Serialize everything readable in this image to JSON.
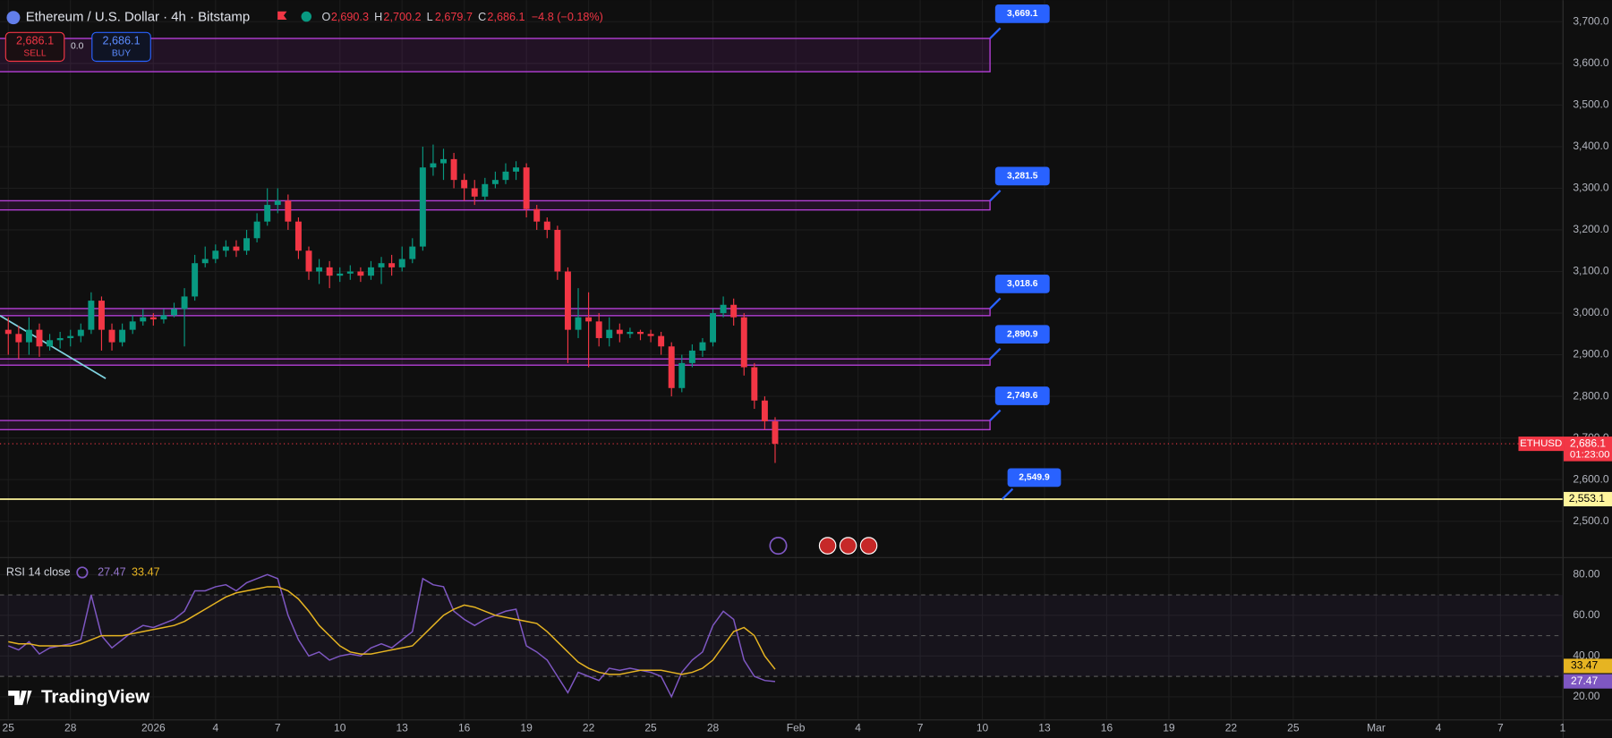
{
  "header": {
    "symbol_title": "Ethereum / U.S. Dollar · 4h · Bitstamp",
    "open_label": "O",
    "open": "2,690.3",
    "high_label": "H",
    "high": "2,700.2",
    "low_label": "L",
    "low": "2,679.7",
    "close_label": "C",
    "close": "2,686.1",
    "change": "−4.8 (−0.18%)",
    "sell_price": "2,686.1",
    "sell_label": "SELL",
    "spread": "0.0",
    "buy_price": "2,686.1",
    "buy_label": "BUY"
  },
  "branding": "TradingView",
  "chart_data": [
    {
      "type": "candlestick",
      "up_color": "#089981",
      "down_color": "#f23645",
      "grid": true,
      "x": [
        0,
        0.5,
        1,
        1.5,
        2,
        2.5,
        3,
        3.5,
        4,
        4.5,
        5,
        5.5,
        6,
        6.5,
        7,
        7.5,
        8,
        8.5,
        9,
        9.5,
        10,
        10.5,
        11,
        11.5,
        12,
        12.5,
        13,
        13.5,
        14,
        14.5,
        15,
        15.5,
        16,
        16.5,
        17,
        17.5,
        18,
        18.5,
        19,
        19.5,
        20,
        20.5,
        21,
        21.5,
        22,
        22.5,
        23,
        23.5,
        24,
        24.5,
        25,
        25.5,
        26,
        26.5,
        27,
        27.5,
        28,
        28.5,
        29,
        29.5,
        30,
        30.5,
        31,
        31.5,
        32,
        32.5,
        33,
        33.5,
        34,
        34.5,
        35,
        35.5,
        36,
        36.5,
        37
      ],
      "open": [
        2960,
        2950,
        2930,
        2960,
        2920,
        2935,
        2940,
        2945,
        2960,
        3030,
        2960,
        2930,
        2960,
        2980,
        2990,
        2985,
        2995,
        3010,
        3040,
        3120,
        3130,
        3150,
        3160,
        3150,
        3180,
        3220,
        3260,
        3270,
        3220,
        3150,
        3100,
        3110,
        3090,
        3095,
        3100,
        3090,
        3110,
        3120,
        3110,
        3130,
        3160,
        3350,
        3360,
        3370,
        3320,
        3300,
        3280,
        3310,
        3320,
        3340,
        3350,
        3250,
        3220,
        3200,
        3100,
        2960,
        2990,
        2980,
        2940,
        2960,
        2950,
        2955,
        2950,
        2945,
        2920,
        2820,
        2880,
        2910,
        2930,
        3000,
        3020,
        2990,
        2870,
        2790,
        2740
      ],
      "high": [
        2990,
        2970,
        2990,
        2975,
        2950,
        2955,
        2960,
        2975,
        3050,
        3040,
        2975,
        2975,
        2995,
        3010,
        3000,
        3010,
        3025,
        3060,
        3140,
        3160,
        3165,
        3175,
        3175,
        3200,
        3240,
        3300,
        3300,
        3285,
        3230,
        3160,
        3130,
        3125,
        3110,
        3115,
        3110,
        3125,
        3135,
        3140,
        3160,
        3180,
        3400,
        3405,
        3395,
        3385,
        3335,
        3320,
        3325,
        3340,
        3360,
        3365,
        3360,
        3260,
        3230,
        3210,
        3110,
        3060,
        3050,
        3000,
        2990,
        2975,
        2965,
        2960,
        2960,
        2955,
        2930,
        2900,
        2925,
        2940,
        3010,
        3040,
        3035,
        3000,
        2880,
        2800,
        2750
      ],
      "low": [
        2900,
        2890,
        2900,
        2895,
        2910,
        2915,
        2920,
        2930,
        2950,
        2910,
        2910,
        2920,
        2950,
        2970,
        2970,
        2975,
        2990,
        2920,
        3030,
        3110,
        3120,
        3135,
        3135,
        3140,
        3170,
        3210,
        3240,
        3200,
        3130,
        3080,
        3070,
        3060,
        3075,
        3080,
        3075,
        3080,
        3070,
        3090,
        3100,
        3120,
        3150,
        3330,
        3320,
        3300,
        3270,
        3260,
        3270,
        3300,
        3310,
        3320,
        3230,
        3200,
        3180,
        3080,
        2880,
        2940,
        2870,
        2920,
        2920,
        2930,
        2940,
        2935,
        2930,
        2900,
        2800,
        2810,
        2870,
        2895,
        2920,
        2990,
        2970,
        2850,
        2770,
        2720,
        2640
      ],
      "close": [
        2950,
        2930,
        2960,
        2920,
        2935,
        2940,
        2945,
        2960,
        3030,
        2960,
        2930,
        2960,
        2980,
        2990,
        2985,
        2995,
        3010,
        3040,
        3120,
        3130,
        3150,
        3160,
        3150,
        3180,
        3220,
        3260,
        3270,
        3220,
        3150,
        3100,
        3110,
        3090,
        3095,
        3100,
        3090,
        3110,
        3120,
        3110,
        3130,
        3160,
        3350,
        3360,
        3370,
        3320,
        3300,
        3280,
        3310,
        3320,
        3340,
        3350,
        3250,
        3220,
        3200,
        3100,
        2960,
        2990,
        2980,
        2940,
        2960,
        2950,
        2955,
        2950,
        2945,
        2920,
        2820,
        2880,
        2910,
        2930,
        3000,
        3020,
        2990,
        2870,
        2790,
        2740,
        2686.1
      ],
      "xlim": [
        -0.4,
        75.0
      ],
      "ylim": [
        2414,
        3752
      ],
      "xticks": [
        {
          "value": 0,
          "label": "25"
        },
        {
          "value": 3,
          "label": "28"
        },
        {
          "value": 7,
          "label": "2026"
        },
        {
          "value": 10,
          "label": "4"
        },
        {
          "value": 13,
          "label": "7"
        },
        {
          "value": 16,
          "label": "10"
        },
        {
          "value": 19,
          "label": "13"
        },
        {
          "value": 22,
          "label": "16"
        },
        {
          "value": 25,
          "label": "19"
        },
        {
          "value": 28,
          "label": "22"
        },
        {
          "value": 31,
          "label": "25"
        },
        {
          "value": 34,
          "label": "28"
        },
        {
          "value": 38,
          "label": "Feb"
        },
        {
          "value": 41,
          "label": "4"
        },
        {
          "value": 44,
          "label": "7"
        },
        {
          "value": 47,
          "label": "10"
        },
        {
          "value": 50,
          "label": "13"
        },
        {
          "value": 53,
          "label": "16"
        },
        {
          "value": 56,
          "label": "19"
        },
        {
          "value": 59,
          "label": "22"
        },
        {
          "value": 62,
          "label": "25"
        },
        {
          "value": 66,
          "label": "Mar"
        },
        {
          "value": 69,
          "label": "4"
        },
        {
          "value": 72,
          "label": "7"
        },
        {
          "value": 75,
          "label": "1"
        }
      ],
      "yticks": [
        {
          "value": 2500,
          "label": "2,500.0"
        },
        {
          "value": 2600,
          "label": "2,600.0"
        },
        {
          "value": 2700,
          "label": "2,700.0"
        },
        {
          "value": 2800,
          "label": "2,800.0"
        },
        {
          "value": 2900,
          "label": "2,900.0"
        },
        {
          "value": 3000,
          "label": "3,000.0"
        },
        {
          "value": 3100,
          "label": "3,100.0"
        },
        {
          "value": 3200,
          "label": "3,200.0"
        },
        {
          "value": 3300,
          "label": "3,300.0"
        },
        {
          "value": 3400,
          "label": "3,400.0"
        },
        {
          "value": 3500,
          "label": "3,500.0"
        },
        {
          "value": 3600,
          "label": "3,600.0"
        },
        {
          "value": 3700,
          "label": "3,700.0"
        }
      ],
      "zones": [
        {
          "value": 3669.1,
          "label": "3,669.1",
          "top": 3660,
          "bottom": 3580
        },
        {
          "value": 3281.5,
          "label": "3,281.5",
          "top": 3270,
          "bottom": 3248
        },
        {
          "value": 3018.6,
          "label": "3,018.6",
          "top": 3011,
          "bottom": 2994
        },
        {
          "value": 2890.9,
          "label": "2,890.9",
          "top": 2890,
          "bottom": 2875
        },
        {
          "value": 2749.6,
          "label": "2,749.6",
          "top": 2742,
          "bottom": 2720
        }
      ],
      "support_line": {
        "value": 2553.1,
        "label": "2,553.1",
        "color": "#fff59d",
        "callout": {
          "value": 2549.9,
          "label": "2,549.9"
        }
      },
      "trendline": {
        "x": [
          -0.4,
          4.7
        ],
        "y": [
          2994,
          2843
        ],
        "color": "#7fd3e0"
      },
      "last_price": {
        "symbol": "ETHUSD",
        "value": 2686.1,
        "label": "2,686.1",
        "countdown": "01:23:00"
      }
    },
    {
      "type": "line",
      "title": "RSI 14 close",
      "x": [
        0,
        0.5,
        1,
        1.5,
        2,
        2.5,
        3,
        3.5,
        4,
        4.5,
        5,
        5.5,
        6,
        6.5,
        7,
        7.5,
        8,
        8.5,
        9,
        9.5,
        10,
        10.5,
        11,
        11.5,
        12,
        12.5,
        13,
        13.5,
        14,
        14.5,
        15,
        15.5,
        16,
        16.5,
        17,
        17.5,
        18,
        18.5,
        19,
        19.5,
        20,
        20.5,
        21,
        21.5,
        22,
        22.5,
        23,
        23.5,
        24,
        24.5,
        25,
        25.5,
        26,
        26.5,
        27,
        27.5,
        28,
        28.5,
        29,
        29.5,
        30,
        30.5,
        31,
        31.5,
        32,
        32.5,
        33,
        33.5,
        34,
        34.5,
        35,
        35.5,
        36,
        36.5,
        37
      ],
      "series": [
        {
          "color": "#7e57c2",
          "last_label": "27.47",
          "values": [
            45,
            43,
            47,
            41,
            44,
            45,
            46,
            48,
            70,
            50,
            44,
            48,
            52,
            55,
            54,
            56,
            58,
            62,
            72,
            72,
            74,
            75,
            72,
            76,
            78,
            80,
            78,
            60,
            48,
            40,
            42,
            38,
            40,
            41,
            40,
            44,
            46,
            44,
            48,
            52,
            78,
            75,
            74,
            62,
            58,
            55,
            58,
            60,
            62,
            63,
            45,
            42,
            38,
            30,
            22,
            32,
            30,
            28,
            34,
            33,
            34,
            33,
            32,
            30,
            20,
            32,
            38,
            42,
            55,
            62,
            58,
            38,
            30,
            28,
            27.47
          ]
        },
        {
          "color": "#e6b422",
          "last_label": "33.47",
          "values": [
            47,
            46,
            46,
            45,
            45,
            45,
            45,
            46,
            48,
            50,
            50,
            50,
            51,
            52,
            53,
            54,
            55,
            57,
            60,
            63,
            66,
            69,
            71,
            72,
            73,
            74,
            74,
            72,
            68,
            62,
            55,
            50,
            45,
            42,
            41,
            41,
            42,
            43,
            44,
            45,
            50,
            55,
            60,
            63,
            65,
            64,
            62,
            60,
            59,
            58,
            57,
            56,
            52,
            47,
            42,
            37,
            34,
            32,
            31,
            31,
            32,
            33,
            33,
            33,
            32,
            31,
            32,
            34,
            38,
            45,
            52,
            54,
            50,
            40,
            33.47
          ]
        }
      ],
      "xlim": [
        -0.4,
        75.0
      ],
      "ylim": [
        8.9,
        88.1
      ],
      "yticks": [
        {
          "value": 20,
          "label": "20.00"
        },
        {
          "value": 40,
          "label": "40.00"
        },
        {
          "value": 60,
          "label": "60.00"
        },
        {
          "value": 80,
          "label": "80.00"
        }
      ],
      "levels": [
        30,
        50,
        70
      ]
    }
  ]
}
